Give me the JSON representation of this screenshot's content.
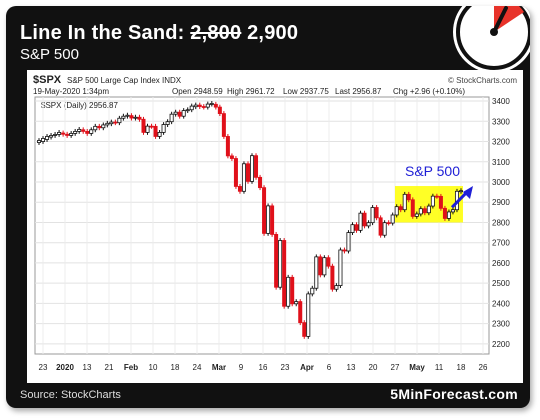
{
  "headline": {
    "prefix": "Line In the Sand: ",
    "old_level": "2,800",
    "new_level": "2,900"
  },
  "subheadline": "S&P 500",
  "source": "Source: StockCharts",
  "brand": "5MinForecast.com",
  "accent_colors": {
    "gauge": "#e8332a",
    "highlight": "#ffff00",
    "arrow": "#1f1fd6",
    "down_candle": "#e0101a"
  },
  "chart_header": {
    "ticker": "$SPX",
    "name": "S&P 500 Large Cap Index",
    "exchange": "INDX",
    "credit": "© StockCharts.com",
    "date": "19-May-2020 1:34pm",
    "open": "Open 2948.59",
    "high": "High 2961.72",
    "low": "Low 2937.75",
    "last": "Last 2956.87",
    "chg": "Chg +2.96 (+0.10%)",
    "legend": "$SPX (Daily) 2956.87"
  },
  "chart_data": {
    "type": "candlestick",
    "title": "S&P 500",
    "ylim": [
      2150,
      3420
    ],
    "y_ticks": [
      2200,
      2300,
      2400,
      2500,
      2600,
      2700,
      2800,
      2900,
      3000,
      3100,
      3200,
      3300,
      3400
    ],
    "x_tick_labels": [
      "23",
      "2020",
      "13",
      "21",
      "Feb",
      "10",
      "18",
      "24",
      "Mar",
      "9",
      "16",
      "23",
      "Apr",
      "6",
      "13",
      "20",
      "27",
      "May",
      "11",
      "18",
      "26"
    ],
    "grid": true,
    "highlight_range": [
      2800,
      2980
    ],
    "series": [
      {
        "values": [
          [
            3195,
            3205
          ],
          [
            3200,
            3215
          ],
          [
            3210,
            3225
          ],
          [
            3222,
            3230
          ],
          [
            3230,
            3235
          ],
          [
            3235,
            3245
          ],
          [
            3242,
            3236
          ],
          [
            3236,
            3230
          ],
          [
            3230,
            3240
          ],
          [
            3240,
            3250
          ],
          [
            3250,
            3260
          ],
          [
            3258,
            3250
          ],
          [
            3250,
            3240
          ],
          [
            3240,
            3258
          ],
          [
            3258,
            3275
          ],
          [
            3275,
            3268
          ],
          [
            3268,
            3282
          ],
          [
            3282,
            3290
          ],
          [
            3288,
            3296
          ],
          [
            3296,
            3293
          ],
          [
            3293,
            3315
          ],
          [
            3315,
            3325
          ],
          [
            3325,
            3330
          ],
          [
            3328,
            3316
          ],
          [
            3316,
            3320
          ],
          [
            3320,
            3310
          ],
          [
            3310,
            3245
          ],
          [
            3245,
            3276
          ],
          [
            3276,
            3275
          ],
          [
            3275,
            3225
          ],
          [
            3225,
            3245
          ],
          [
            3245,
            3284
          ],
          [
            3284,
            3298
          ],
          [
            3298,
            3335
          ],
          [
            3335,
            3345
          ],
          [
            3345,
            3325
          ],
          [
            3325,
            3353
          ],
          [
            3353,
            3357
          ],
          [
            3357,
            3375
          ],
          [
            3372,
            3380
          ],
          [
            3380,
            3373
          ],
          [
            3373,
            3370
          ],
          [
            3370,
            3385
          ],
          [
            3385,
            3388
          ],
          [
            3384,
            3370
          ],
          [
            3370,
            3338
          ],
          [
            3338,
            3225
          ],
          [
            3225,
            3129
          ],
          [
            3129,
            3116
          ],
          [
            3116,
            2978
          ],
          [
            2978,
            2954
          ],
          [
            2954,
            3090
          ],
          [
            3090,
            3003
          ],
          [
            3003,
            3130
          ],
          [
            3130,
            3023
          ],
          [
            3023,
            2972
          ],
          [
            2972,
            2746
          ],
          [
            2746,
            2882
          ],
          [
            2882,
            2741
          ],
          [
            2741,
            2480
          ],
          [
            2480,
            2711
          ],
          [
            2711,
            2386
          ],
          [
            2386,
            2529
          ],
          [
            2529,
            2398
          ],
          [
            2398,
            2409
          ],
          [
            2409,
            2305
          ],
          [
            2305,
            2237
          ],
          [
            2237,
            2447
          ],
          [
            2447,
            2475
          ],
          [
            2475,
            2630
          ],
          [
            2630,
            2541
          ],
          [
            2541,
            2626
          ],
          [
            2626,
            2584
          ],
          [
            2584,
            2470
          ],
          [
            2470,
            2488
          ],
          [
            2488,
            2664
          ],
          [
            2664,
            2659
          ],
          [
            2659,
            2750
          ],
          [
            2750,
            2789
          ],
          [
            2789,
            2761
          ],
          [
            2761,
            2846
          ],
          [
            2846,
            2783
          ],
          [
            2783,
            2799
          ],
          [
            2799,
            2874
          ],
          [
            2874,
            2823
          ],
          [
            2823,
            2737
          ],
          [
            2737,
            2799
          ],
          [
            2799,
            2797
          ],
          [
            2797,
            2837
          ],
          [
            2837,
            2878
          ],
          [
            2878,
            2863
          ],
          [
            2863,
            2939
          ],
          [
            2939,
            2912
          ],
          [
            2912,
            2830
          ],
          [
            2830,
            2842
          ],
          [
            2842,
            2868
          ],
          [
            2868,
            2848
          ],
          [
            2848,
            2881
          ],
          [
            2881,
            2930
          ],
          [
            2930,
            2929
          ],
          [
            2929,
            2870
          ],
          [
            2870,
            2820
          ],
          [
            2820,
            2852
          ],
          [
            2852,
            2863
          ],
          [
            2863,
            2954
          ],
          [
            2954,
            2957
          ]
        ]
      }
    ],
    "annotation": "S&P 500"
  }
}
